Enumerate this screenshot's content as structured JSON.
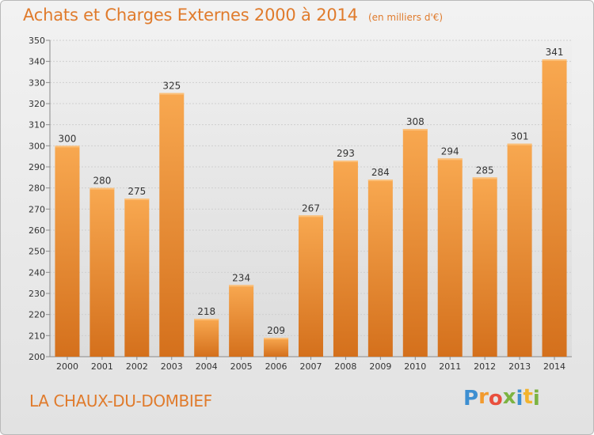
{
  "chart_data": {
    "type": "bar",
    "title": "Achats et Charges Externes 2000 à 2014",
    "unit_label": "(en milliers d'€)",
    "categories": [
      "2000",
      "2001",
      "2002",
      "2003",
      "2004",
      "2005",
      "2006",
      "2007",
      "2008",
      "2009",
      "2010",
      "2011",
      "2012",
      "2013",
      "2014"
    ],
    "values": [
      300,
      280,
      275,
      325,
      218,
      234,
      209,
      267,
      293,
      284,
      308,
      294,
      285,
      301,
      341
    ],
    "ylim": [
      200,
      350
    ],
    "yticks": [
      200,
      210,
      220,
      230,
      240,
      250,
      260,
      270,
      280,
      290,
      300,
      310,
      320,
      330,
      340,
      350
    ],
    "grid": true,
    "bar_color": "#f0922e"
  },
  "footer": {
    "commune": "LA CHAUX-DU-DOMBIEF",
    "logo_letters": [
      "P",
      "r",
      "o",
      "x",
      "i",
      "t",
      "i"
    ],
    "logo_colors": [
      "#3d8fd1",
      "#f29a2e",
      "#e94f3d",
      "#7cb342",
      "#3d8fd1",
      "#f2b32e",
      "#7cb342"
    ]
  }
}
